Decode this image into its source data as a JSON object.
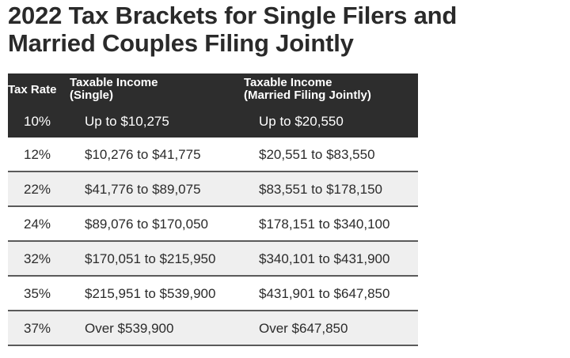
{
  "title_line1": "2022 Tax Brackets for Single Filers and",
  "title_line2": "Married Couples Filing Jointly",
  "headers": {
    "rate": "Tax Rate",
    "single_1": "Taxable Income",
    "single_2": "(Single)",
    "married_1": "Taxable Income",
    "married_2": "(Married Filing Jointly)"
  },
  "rows": [
    {
      "rate": "10%",
      "single": "Up to $10,275",
      "married": "Up to $20,550"
    },
    {
      "rate": "12%",
      "single": "$10,276 to $41,775",
      "married": "$20,551 to $83,550"
    },
    {
      "rate": "22%",
      "single": "$41,776 to $89,075",
      "married": "$83,551 to $178,150"
    },
    {
      "rate": "24%",
      "single": "$89,076 to $170,050",
      "married": "$178,151 to $340,100"
    },
    {
      "rate": "32%",
      "single": "$170,051 to $215,950",
      "married": "$340,101 to $431,900"
    },
    {
      "rate": "35%",
      "single": "$215,951 to $539,900",
      "married": "$431,901 to $647,850"
    },
    {
      "rate": "37%",
      "single": "Over $539,900",
      "married": "Over $647,850"
    }
  ],
  "colors": {
    "header_bg": "#2d2d2d",
    "stripe": "#efefef",
    "divider": "#5a5a5a"
  }
}
